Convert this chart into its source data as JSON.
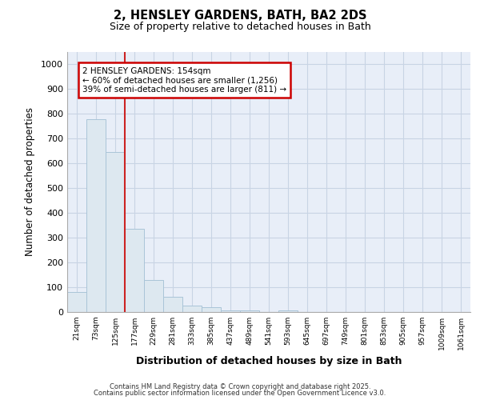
{
  "title_line1": "2, HENSLEY GARDENS, BATH, BA2 2DS",
  "title_line2": "Size of property relative to detached houses in Bath",
  "xlabel": "Distribution of detached houses by size in Bath",
  "ylabel": "Number of detached properties",
  "bar_values": [
    80,
    780,
    645,
    335,
    130,
    60,
    25,
    20,
    8,
    5,
    0,
    8,
    0,
    0,
    0,
    0,
    0,
    0,
    0,
    0,
    0
  ],
  "bin_labels": [
    "21sqm",
    "73sqm",
    "125sqm",
    "177sqm",
    "229sqm",
    "281sqm",
    "333sqm",
    "385sqm",
    "437sqm",
    "489sqm",
    "541sqm",
    "593sqm",
    "645sqm",
    "697sqm",
    "749sqm",
    "801sqm",
    "853sqm",
    "905sqm",
    "957sqm",
    "1009sqm",
    "1061sqm"
  ],
  "bar_color": "#dde8f0",
  "bar_edge_color": "#aac4d8",
  "grid_color": "#c8d4e4",
  "plot_bg_color": "#e8eef8",
  "fig_bg_color": "#ffffff",
  "red_line_x": 2.5,
  "annotation_box_text": "2 HENSLEY GARDENS: 154sqm\n← 60% of detached houses are smaller (1,256)\n39% of semi-detached houses are larger (811) →",
  "annotation_box_facecolor": "#ffffff",
  "annotation_box_edgecolor": "#cc0000",
  "ylim": [
    0,
    1050
  ],
  "yticks": [
    0,
    100,
    200,
    300,
    400,
    500,
    600,
    700,
    800,
    900,
    1000
  ],
  "footer_line1": "Contains HM Land Registry data © Crown copyright and database right 2025.",
  "footer_line2": "Contains public sector information licensed under the Open Government Licence v3.0."
}
